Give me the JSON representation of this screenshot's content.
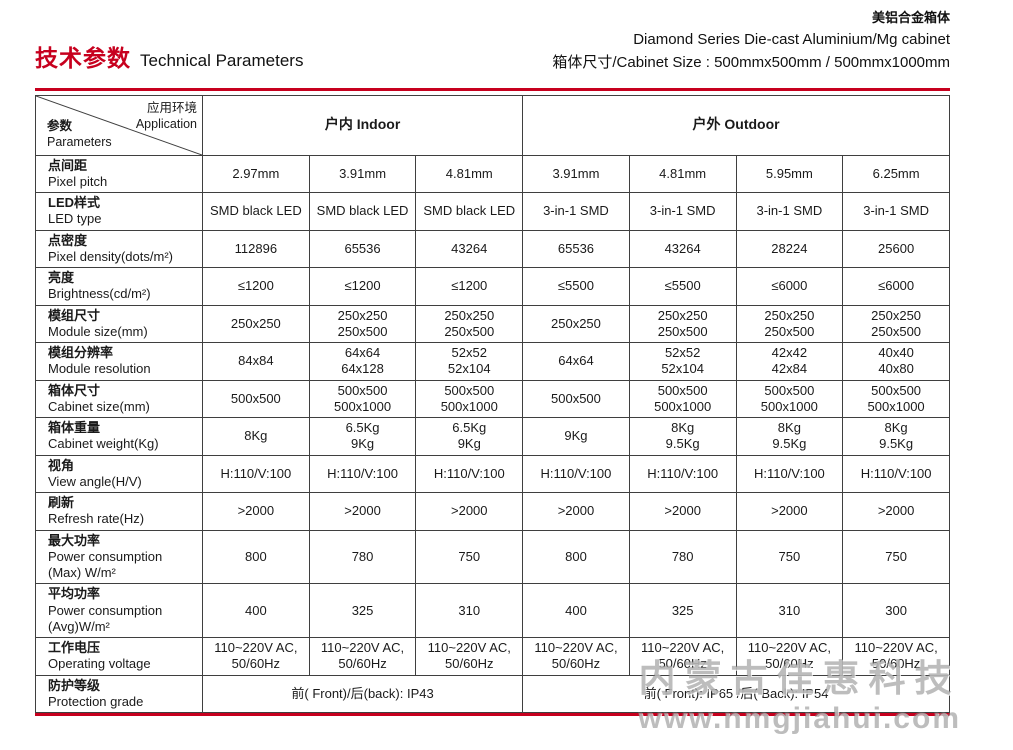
{
  "header": {
    "title_cn": "技术参数",
    "title_en": "Technical Parameters",
    "product_cn": "美铝合金箱体",
    "product_en": "Diamond Series Die-cast Aluminium/Mg cabinet",
    "cabinet_size": "箱体尺寸/Cabinet Size : 500mmx500mm / 500mmx1000mm"
  },
  "table": {
    "corner": {
      "env_cn": "应用环境",
      "env_en": "Application",
      "param_cn": "参数",
      "param_en": "Parameters"
    },
    "groups": [
      {
        "cn": "户内",
        "en": "Indoor"
      },
      {
        "cn": "户外",
        "en": "Outdoor"
      }
    ],
    "rows": [
      {
        "cn": "点间距",
        "en": "Pixel pitch",
        "cells": [
          "2.97mm",
          "3.91mm",
          "4.81mm",
          "3.91mm",
          "4.81mm",
          "5.95mm",
          "6.25mm"
        ]
      },
      {
        "cn": "LED样式",
        "en": "LED type",
        "cells": [
          "SMD black LED",
          "SMD black LED",
          "SMD black LED",
          "3-in-1 SMD",
          "3-in-1 SMD",
          "3-in-1 SMD",
          "3-in-1 SMD"
        ]
      },
      {
        "cn": "点密度",
        "en": "Pixel density(dots/m²)",
        "cells": [
          "112896",
          "65536",
          "43264",
          "65536",
          "43264",
          "28224",
          "25600"
        ]
      },
      {
        "cn": "亮度",
        "en": "Brightness(cd/m²)",
        "cells": [
          "≤1200",
          "≤1200",
          "≤1200",
          "≤5500",
          "≤5500",
          "≤6000",
          "≤6000"
        ]
      },
      {
        "cn": "模组尺寸",
        "en": "Module size(mm)",
        "cells": [
          "250x250",
          "250x250\n250x500",
          "250x250\n250x500",
          "250x250",
          "250x250\n250x500",
          "250x250\n250x500",
          "250x250\n250x500"
        ]
      },
      {
        "cn": "模组分辨率",
        "en": "Module resolution",
        "cells": [
          "84x84",
          "64x64\n64x128",
          "52x52\n52x104",
          "64x64",
          "52x52\n52x104",
          "42x42\n42x84",
          "40x40\n40x80"
        ]
      },
      {
        "cn": "箱体尺寸",
        "en": "Cabinet size(mm)",
        "cells": [
          "500x500",
          "500x500\n500x1000",
          "500x500\n500x1000",
          "500x500",
          "500x500\n500x1000",
          "500x500\n500x1000",
          "500x500\n500x1000"
        ]
      },
      {
        "cn": "箱体重量",
        "en": "Cabinet weight(Kg)",
        "cells": [
          "8Kg",
          "6.5Kg\n9Kg",
          "6.5Kg\n9Kg",
          "9Kg",
          "8Kg\n9.5Kg",
          "8Kg\n9.5Kg",
          "8Kg\n9.5Kg"
        ]
      },
      {
        "cn": "视角",
        "en": "View angle(H/V)",
        "cells": [
          "H:110/V:100",
          "H:110/V:100",
          "H:110/V:100",
          "H:110/V:100",
          "H:110/V:100",
          "H:110/V:100",
          "H:110/V:100"
        ]
      },
      {
        "cn": "刷新",
        "en": "Refresh rate(Hz)",
        "cells": [
          ">2000",
          ">2000",
          ">2000",
          ">2000",
          ">2000",
          ">2000",
          ">2000"
        ]
      },
      {
        "cn": "最大功率",
        "en": "Power consumption\n(Max) W/m²",
        "cells": [
          "800",
          "780",
          "750",
          "800",
          "780",
          "750",
          "750"
        ]
      },
      {
        "cn": "平均功率",
        "en": "Power consumption\n(Avg)W/m²",
        "cells": [
          "400",
          "325",
          "310",
          "400",
          "325",
          "310",
          "300"
        ]
      },
      {
        "cn": "工作电压",
        "en": "Operating voltage",
        "cells": [
          "110~220V AC,\n50/60Hz",
          "110~220V AC,\n50/60Hz",
          "110~220V AC,\n50/60Hz",
          "110~220V AC,\n50/60Hz",
          "110~220V AC,\n50/60Hz",
          "110~220V AC,\n50/60Hz",
          "110~220V AC,\n50/60Hz"
        ]
      }
    ],
    "footer": {
      "cn": "防护等级",
      "en": "Protection grade",
      "indoor": "前( Front)/后(back): IP43",
      "outdoor": "前( Front): IP65 /后( Back): IP54"
    }
  },
  "watermark": {
    "line1": "内蒙古佳惠科技",
    "line2": "www.nmgjiahui.com"
  },
  "colors": {
    "accent": "#c7001e",
    "border": "#3f3f3f"
  }
}
